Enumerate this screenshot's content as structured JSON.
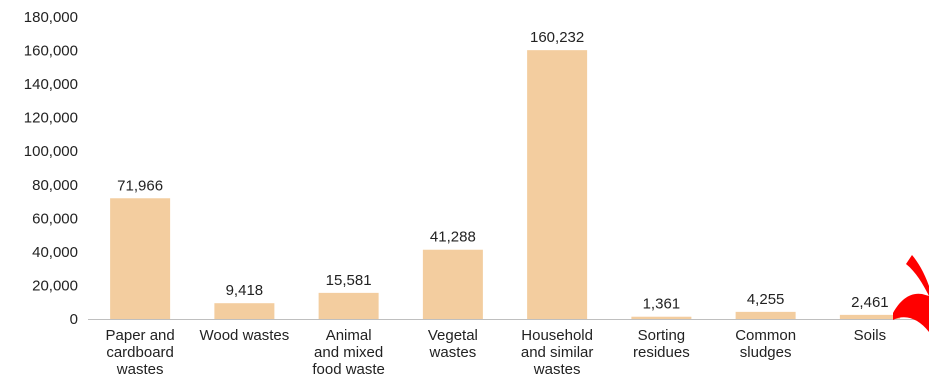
{
  "colors": {
    "bar_fill": "#f3cd9f",
    "axis_line": "#bfbfbf",
    "text": "#222222",
    "corner_mark": "#ff0000"
  },
  "corner_mark_icon": "red-ribbon-icon",
  "chart_data": {
    "type": "bar",
    "title": "",
    "xlabel": "",
    "ylabel": "",
    "ylim": [
      0,
      180000
    ],
    "grid": false,
    "legend": "none",
    "y_ticks": [
      {
        "value": 0,
        "label": "0"
      },
      {
        "value": 20000,
        "label": "20,000"
      },
      {
        "value": 40000,
        "label": "40,000"
      },
      {
        "value": 60000,
        "label": "60,000"
      },
      {
        "value": 80000,
        "label": "80,000"
      },
      {
        "value": 100000,
        "label": "100,000"
      },
      {
        "value": 120000,
        "label": "120,000"
      },
      {
        "value": 140000,
        "label": "140,000"
      },
      {
        "value": 160000,
        "label": "160,000"
      },
      {
        "value": 180000,
        "label": "180,000"
      }
    ],
    "categories": [
      [
        "Paper and",
        "cardboard",
        "wastes"
      ],
      [
        "Wood wastes"
      ],
      [
        "Animal",
        "and mixed",
        "food waste"
      ],
      [
        "Vegetal",
        "wastes"
      ],
      [
        "Household",
        "and similar",
        "wastes"
      ],
      [
        "Sorting",
        "residues"
      ],
      [
        "Common",
        "sludges"
      ],
      [
        "Soils"
      ]
    ],
    "values": [
      71966,
      9418,
      15581,
      41288,
      160232,
      1361,
      4255,
      2461
    ],
    "value_labels": [
      "71,966",
      "9,418",
      "15,581",
      "41,288",
      "160,232",
      "1,361",
      "4,255",
      "2,461"
    ]
  }
}
